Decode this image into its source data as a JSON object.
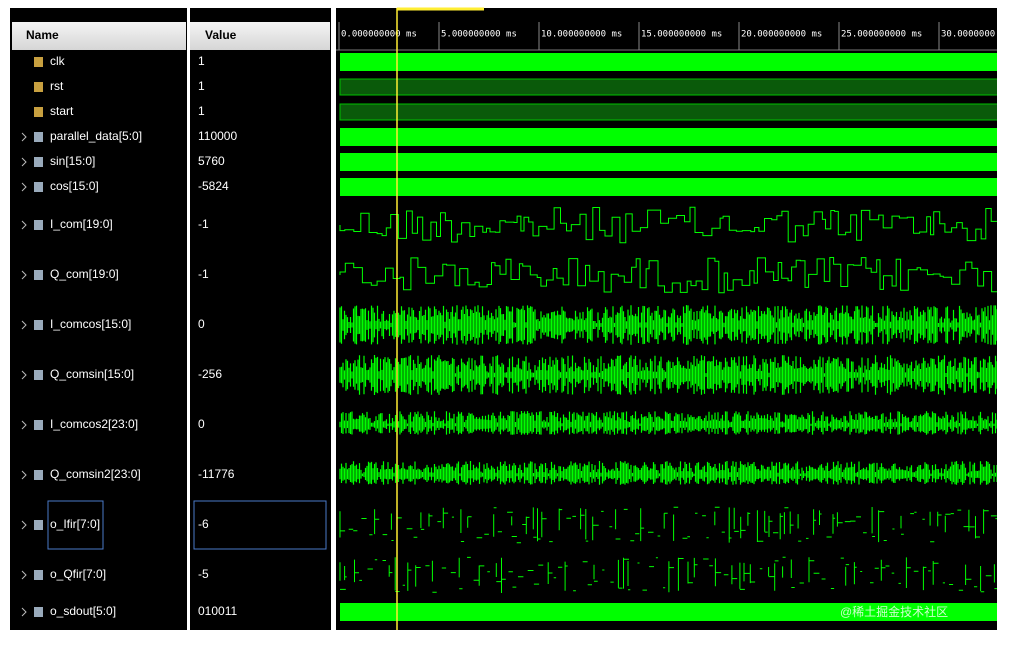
{
  "header": {
    "name": "Name",
    "value": "Value"
  },
  "ruler": [
    "0.000000000 ms",
    "5.000000000 ms",
    "10.000000000 ms",
    "15.000000000 ms",
    "20.000000000 ms",
    "25.000000000 ms",
    "30.0000000"
  ],
  "signals": [
    {
      "name": "clk",
      "value": "1"
    },
    {
      "name": "rst",
      "value": "1"
    },
    {
      "name": "start",
      "value": "1"
    },
    {
      "name": "parallel_data[5:0]",
      "value": "110000"
    },
    {
      "name": "sin[15:0]",
      "value": "5760"
    },
    {
      "name": "cos[15:0]",
      "value": "-5824"
    },
    {
      "name": "I_com[19:0]",
      "value": "-1"
    },
    {
      "name": "Q_com[19:0]",
      "value": "-1"
    },
    {
      "name": "I_comcos[15:0]",
      "value": "0"
    },
    {
      "name": "Q_comsin[15:0]",
      "value": "-256"
    },
    {
      "name": "I_comcos2[23:0]",
      "value": "0"
    },
    {
      "name": "Q_comsin2[23:0]",
      "value": "-11776"
    },
    {
      "name": "o_Ifir[7:0]",
      "value": "-6"
    },
    {
      "name": "o_Qfir[7:0]",
      "value": "-5"
    },
    {
      "name": "o_sdout[5:0]",
      "value": "010011"
    }
  ],
  "watermark": "@稀土掘金技术社区"
}
